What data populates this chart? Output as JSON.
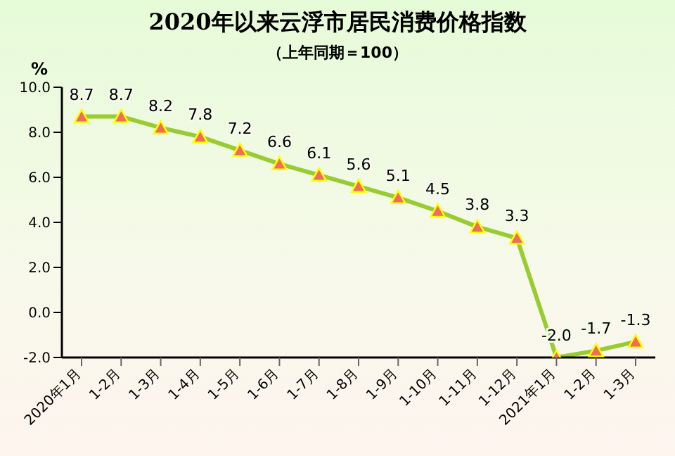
{
  "chart_data": {
    "type": "line",
    "title": "2020年以来云浮市居民消费价格指数",
    "subtitle": "（上年同期＝100）",
    "ylabel": "%",
    "categories": [
      "2020年1月",
      "1-2月",
      "1-3月",
      "1-4月",
      "1-5月",
      "1-6月",
      "1-7月",
      "1-8月",
      "1-9月",
      "1-10月",
      "1-11月",
      "1-12月",
      "2021年1月",
      "1-2月",
      "1-3月"
    ],
    "series": [
      {
        "color": "#99cc33",
        "values": [
          8.7,
          8.7,
          8.2,
          7.8,
          7.2,
          6.6,
          6.1,
          5.6,
          5.1,
          4.5,
          3.8,
          3.3,
          -2.0,
          -1.7,
          -1.3
        ],
        "value_labels": [
          "8.7",
          "8.7",
          "8.2",
          "7.8",
          "7.2",
          "6.6",
          "6.1",
          "5.6",
          "5.1",
          "4.5",
          "3.8",
          "3.3",
          "-2.0",
          "-1.7",
          "-1.3"
        ]
      }
    ],
    "ylim": [
      -2,
      10
    ],
    "yticks": [
      {
        "value": -2,
        "label": "-2.0"
      },
      {
        "value": 0,
        "label": "0.0"
      },
      {
        "value": 2,
        "label": "2.0"
      },
      {
        "value": 4,
        "label": "4.0"
      },
      {
        "value": 6,
        "label": "6.0"
      },
      {
        "value": 8,
        "label": "8.0"
      },
      {
        "value": 10,
        "label": "10.0"
      }
    ],
    "grid": false,
    "legend": false,
    "marker": "triangle",
    "line_style": "solid"
  }
}
